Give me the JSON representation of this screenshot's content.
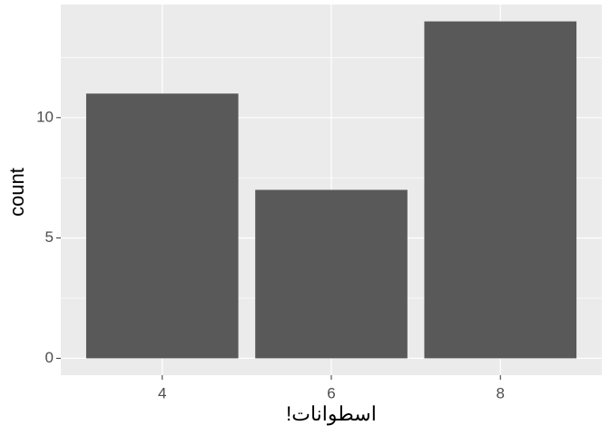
{
  "chart_data": {
    "type": "bar",
    "categories": [
      "4",
      "6",
      "8"
    ],
    "values": [
      11,
      7,
      14
    ],
    "color": "#595959",
    "x_label": "اسطوانات!",
    "y_label": "count",
    "ylim": [
      -0.7,
      14.7
    ],
    "yticks": [
      0,
      5,
      10
    ],
    "y_minor_ticks": [
      2.5,
      7.5,
      12.5
    ],
    "grid": true
  }
}
